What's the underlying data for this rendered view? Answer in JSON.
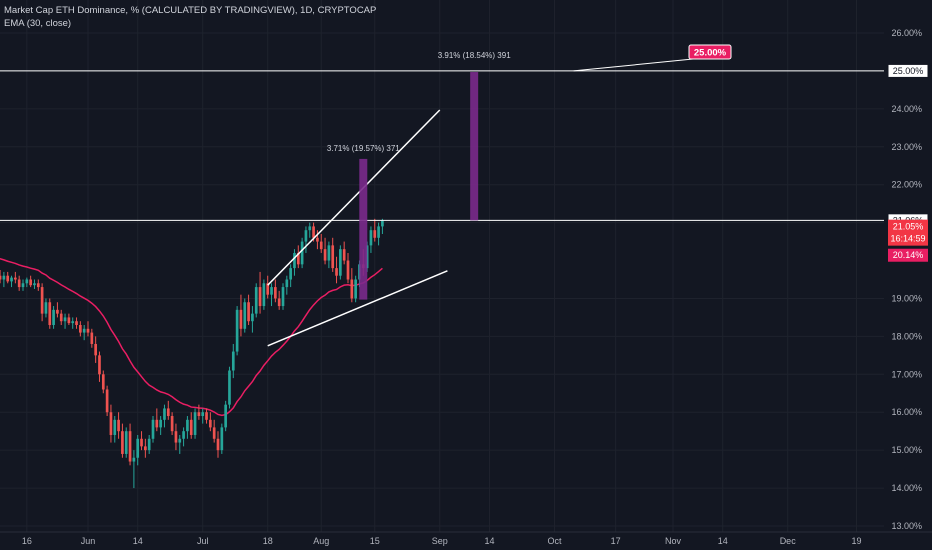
{
  "legend": {
    "title": "Market Cap ETH Dominance, % (CALCULATED BY TRADINGVIEW), 1D, CRYPTOCAP",
    "ema": "EMA (30, close)"
  },
  "chart_data": {
    "type": "candlestick",
    "ylim": [
      12.9,
      26.35
    ],
    "y_ticks": [
      13,
      14,
      15,
      16,
      17,
      18,
      19,
      21,
      22,
      23,
      24,
      26
    ],
    "y_tick_labels": [
      "13.00%",
      "14.00%",
      "15.00%",
      "16.00%",
      "17.00%",
      "18.00%",
      "19.00%",
      "21.00%",
      "22.00%",
      "23.00%",
      "24.00%",
      "26.00%"
    ],
    "x_tick_labels": [
      "16",
      "Jun",
      "14",
      "Jul",
      "18",
      "Aug",
      "15",
      "Sep",
      "14",
      "Oct",
      "17",
      "Nov",
      "14",
      "Dec",
      "19"
    ],
    "x_tick_days": [
      -15,
      1,
      14,
      31,
      48,
      62,
      76,
      93,
      106,
      123,
      139,
      154,
      167,
      184,
      202
    ],
    "x_range_days": [
      -27,
      214
    ],
    "series_candles": [
      [
        -27,
        20.1,
        20.3,
        19.9,
        20.2
      ],
      [
        -26,
        20.2,
        20.4,
        20.0,
        20.3
      ],
      [
        -25,
        20.3,
        20.35,
        19.6,
        19.7
      ],
      [
        -24,
        19.7,
        19.8,
        19.2,
        19.3
      ],
      [
        -23,
        19.3,
        19.7,
        19.2,
        19.6
      ],
      [
        -22,
        19.6,
        19.75,
        19.4,
        19.5
      ],
      [
        -21,
        19.5,
        19.7,
        19.3,
        19.6
      ],
      [
        -20,
        19.6,
        19.7,
        19.4,
        19.45
      ],
      [
        -19,
        19.45,
        19.6,
        19.3,
        19.55
      ],
      [
        -18,
        19.55,
        19.7,
        19.4,
        19.5
      ],
      [
        -17,
        19.5,
        19.6,
        19.2,
        19.3
      ],
      [
        -16,
        19.3,
        19.5,
        19.2,
        19.4
      ],
      [
        -15,
        19.4,
        19.55,
        19.3,
        19.5
      ],
      [
        -14,
        19.5,
        19.6,
        19.3,
        19.35
      ],
      [
        -13,
        19.35,
        19.5,
        19.25,
        19.4
      ],
      [
        -12,
        19.4,
        19.5,
        19.2,
        19.3
      ],
      [
        -11,
        19.3,
        19.4,
        18.4,
        18.6
      ],
      [
        -10,
        18.6,
        19.0,
        18.5,
        18.9
      ],
      [
        -9,
        18.9,
        19.0,
        18.2,
        18.3
      ],
      [
        -8,
        18.3,
        18.8,
        18.2,
        18.7
      ],
      [
        -7,
        18.7,
        18.9,
        18.5,
        18.6
      ],
      [
        -6,
        18.6,
        18.7,
        18.3,
        18.4
      ],
      [
        -5,
        18.4,
        18.6,
        18.2,
        18.5
      ],
      [
        -4,
        18.5,
        18.6,
        18.3,
        18.35
      ],
      [
        -3,
        18.35,
        18.5,
        18.2,
        18.4
      ],
      [
        -2,
        18.4,
        18.5,
        18.2,
        18.3
      ],
      [
        -1,
        18.3,
        18.4,
        18.0,
        18.1
      ],
      [
        0,
        18.1,
        18.3,
        17.9,
        18.2
      ],
      [
        1,
        18.2,
        18.4,
        18.0,
        18.1
      ],
      [
        2,
        18.1,
        18.2,
        17.7,
        17.8
      ],
      [
        3,
        17.8,
        18.0,
        17.3,
        17.5
      ],
      [
        4,
        17.5,
        17.6,
        16.8,
        17.0
      ],
      [
        5,
        17.0,
        17.1,
        16.5,
        16.6
      ],
      [
        6,
        16.6,
        16.7,
        15.9,
        16.0
      ],
      [
        7,
        16.0,
        16.2,
        15.2,
        15.4
      ],
      [
        8,
        15.4,
        15.9,
        15.2,
        15.8
      ],
      [
        9,
        15.8,
        16.0,
        15.3,
        15.5
      ],
      [
        10,
        15.5,
        15.7,
        14.8,
        14.9
      ],
      [
        11,
        14.9,
        15.6,
        14.8,
        15.5
      ],
      [
        12,
        15.5,
        15.7,
        14.6,
        14.7
      ],
      [
        13,
        14.7,
        15.0,
        14.0,
        14.8
      ],
      [
        14,
        14.8,
        15.4,
        14.6,
        15.3
      ],
      [
        15,
        15.3,
        15.5,
        15.0,
        15.1
      ],
      [
        16,
        15.1,
        15.3,
        14.8,
        15.0
      ],
      [
        17,
        15.0,
        15.4,
        14.9,
        15.3
      ],
      [
        18,
        15.3,
        15.9,
        15.2,
        15.8
      ],
      [
        19,
        15.8,
        16.1,
        15.5,
        15.6
      ],
      [
        20,
        15.6,
        15.9,
        15.4,
        15.8
      ],
      [
        21,
        15.8,
        16.2,
        15.6,
        16.1
      ],
      [
        22,
        16.1,
        16.3,
        15.8,
        15.9
      ],
      [
        23,
        15.9,
        16.0,
        15.4,
        15.5
      ],
      [
        24,
        15.5,
        15.7,
        15.0,
        15.2
      ],
      [
        25,
        15.2,
        15.4,
        14.9,
        15.3
      ],
      [
        26,
        15.3,
        15.6,
        15.1,
        15.5
      ],
      [
        27,
        15.5,
        15.9,
        15.3,
        15.8
      ],
      [
        28,
        15.8,
        16.0,
        15.3,
        15.4
      ],
      [
        29,
        15.4,
        16.1,
        15.3,
        16.0
      ],
      [
        30,
        16.0,
        16.2,
        15.8,
        15.9
      ],
      [
        31,
        15.9,
        16.1,
        15.7,
        16.0
      ],
      [
        32,
        16.0,
        16.1,
        15.7,
        15.8
      ],
      [
        33,
        15.8,
        16.0,
        15.5,
        15.6
      ],
      [
        34,
        15.6,
        15.8,
        15.2,
        15.3
      ],
      [
        35,
        15.3,
        15.5,
        14.8,
        15.0
      ],
      [
        36,
        15.0,
        15.7,
        14.9,
        15.6
      ],
      [
        37,
        15.6,
        16.3,
        15.5,
        16.2
      ],
      [
        38,
        16.2,
        17.2,
        16.1,
        17.1
      ],
      [
        39,
        17.1,
        17.8,
        16.9,
        17.6
      ],
      [
        40,
        17.6,
        18.8,
        17.5,
        18.7
      ],
      [
        41,
        18.7,
        19.1,
        18.0,
        18.2
      ],
      [
        42,
        18.2,
        19.0,
        18.1,
        18.9
      ],
      [
        43,
        18.9,
        19.1,
        18.3,
        18.4
      ],
      [
        44,
        18.4,
        18.8,
        18.1,
        18.6
      ],
      [
        45,
        18.6,
        19.4,
        18.5,
        19.3
      ],
      [
        46,
        19.3,
        19.7,
        18.6,
        18.8
      ],
      [
        47,
        18.8,
        19.5,
        18.7,
        19.4
      ],
      [
        48,
        19.4,
        19.6,
        19.0,
        19.1
      ],
      [
        49,
        19.1,
        19.4,
        18.8,
        19.3
      ],
      [
        50,
        19.3,
        19.5,
        18.9,
        19.0
      ],
      [
        51,
        19.0,
        19.2,
        18.7,
        18.8
      ],
      [
        52,
        18.8,
        19.4,
        18.7,
        19.3
      ],
      [
        53,
        19.3,
        19.6,
        19.1,
        19.5
      ],
      [
        54,
        19.5,
        19.9,
        19.3,
        19.8
      ],
      [
        55,
        19.8,
        20.3,
        19.6,
        20.2
      ],
      [
        56,
        20.2,
        20.4,
        19.8,
        19.9
      ],
      [
        57,
        19.9,
        20.6,
        19.8,
        20.5
      ],
      [
        58,
        20.5,
        20.9,
        20.2,
        20.8
      ],
      [
        59,
        20.8,
        21.0,
        20.6,
        20.9
      ],
      [
        60,
        20.9,
        21.0,
        20.5,
        20.6
      ],
      [
        61,
        20.6,
        20.8,
        20.3,
        20.5
      ],
      [
        62,
        20.5,
        20.7,
        20.2,
        20.3
      ],
      [
        63,
        20.3,
        20.6,
        19.9,
        20.0
      ],
      [
        64,
        20.0,
        20.5,
        19.8,
        20.4
      ],
      [
        65,
        20.4,
        20.6,
        19.7,
        19.8
      ],
      [
        66,
        19.8,
        20.1,
        19.4,
        19.6
      ],
      [
        67,
        19.6,
        20.4,
        19.5,
        20.3
      ],
      [
        68,
        20.3,
        20.5,
        19.9,
        20.0
      ],
      [
        69,
        20.0,
        20.2,
        19.4,
        19.5
      ],
      [
        70,
        19.5,
        19.8,
        18.9,
        19.0
      ],
      [
        71,
        19.0,
        19.6,
        18.9,
        19.5
      ],
      [
        72,
        19.5,
        20.0,
        19.3,
        19.9
      ],
      [
        73,
        19.9,
        20.3,
        19.6,
        19.8
      ],
      [
        74,
        19.8,
        20.5,
        19.7,
        20.4
      ],
      [
        75,
        20.4,
        20.9,
        20.2,
        20.8
      ],
      [
        76,
        20.8,
        21.1,
        20.5,
        20.6
      ],
      [
        77,
        20.6,
        21.0,
        20.4,
        20.9
      ],
      [
        78,
        20.9,
        21.1,
        20.7,
        21.05
      ]
    ],
    "ema_label": "EMA (30, close)",
    "last_price_label": "21.05%",
    "countdown_label": "16:14:59",
    "ema_value_label": "20.14%",
    "hline_upper_label": "25.00%",
    "hline_lower_label": "21.06%",
    "target_box_label": "25.00%",
    "measure_1_label": "3.71% (19.57%) 371",
    "measure_2_label": "3.91% (18.54%) 391",
    "colors": {
      "background": "#131722",
      "up": "#26a69a",
      "down": "#ef5350",
      "ema": "#e91e63",
      "measure": "#7b2a8c",
      "line": "#ffffff",
      "label_red": "#f23645",
      "label_pink": "#e91e63",
      "grid": "#1e222d"
    }
  }
}
